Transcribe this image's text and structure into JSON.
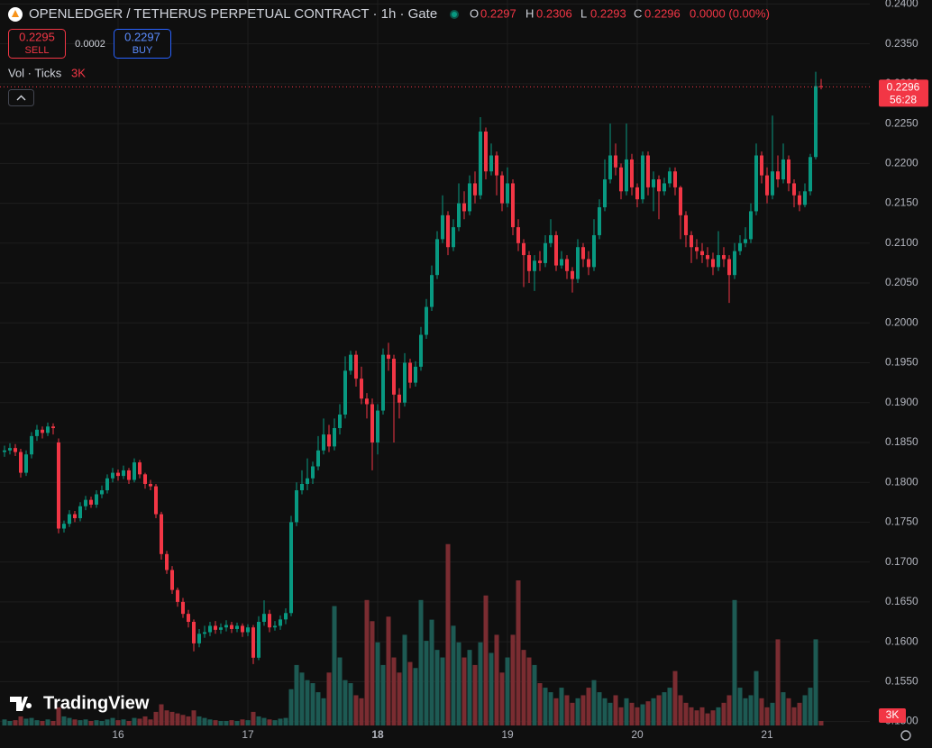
{
  "header": {
    "title": "OPENLEDGER / TETHERUS PERPETUAL CONTRACT · 1h · Gate",
    "o": "O",
    "h": "H",
    "l": "L",
    "c": "C",
    "change": "0.0000 (0.00%)"
  },
  "trade": {
    "sell_price": "0.2295",
    "sell": "SELL",
    "spread": "0.0002",
    "buy_price": "0.2297",
    "buy": "BUY"
  },
  "volume_legend": {
    "label": "Vol · Ticks",
    "value": "3K"
  },
  "countdown": "56:28",
  "brand": "TradingView",
  "chart_data": {
    "type": "candlestick",
    "up_color": "#089981",
    "down_color": "#f23645",
    "volume_up_color": "#1d5a53",
    "volume_down_color": "#7a2c31",
    "grid": true,
    "ylim": [
      0.1495,
      0.2405
    ],
    "yticks": [
      {
        "value": 0.15,
        "label": "0.1500"
      },
      {
        "value": 0.155,
        "label": "0.1550"
      },
      {
        "value": 0.16,
        "label": "0.1600"
      },
      {
        "value": 0.165,
        "label": "0.1650"
      },
      {
        "value": 0.17,
        "label": "0.1700"
      },
      {
        "value": 0.175,
        "label": "0.1750"
      },
      {
        "value": 0.18,
        "label": "0.1800"
      },
      {
        "value": 0.185,
        "label": "0.1850"
      },
      {
        "value": 0.19,
        "label": "0.1900"
      },
      {
        "value": 0.195,
        "label": "0.1950"
      },
      {
        "value": 0.2,
        "label": "0.2000"
      },
      {
        "value": 0.205,
        "label": "0.2050"
      },
      {
        "value": 0.21,
        "label": "0.2100"
      },
      {
        "value": 0.215,
        "label": "0.2150"
      },
      {
        "value": 0.22,
        "label": "0.2200"
      },
      {
        "value": 0.225,
        "label": "0.2250"
      },
      {
        "value": 0.23,
        "label": "0.2300"
      },
      {
        "value": 0.235,
        "label": "0.2350"
      },
      {
        "value": 0.24,
        "label": "0.2400"
      }
    ],
    "xticks": [
      {
        "value": 21,
        "label": "16"
      },
      {
        "value": 45,
        "label": "17"
      },
      {
        "value": 69,
        "label": "18",
        "bold": true
      },
      {
        "value": 93,
        "label": "19"
      },
      {
        "value": 117,
        "label": "20"
      },
      {
        "value": 141,
        "label": "21"
      }
    ],
    "volume_lim": [
      0,
      480000
    ],
    "volume_label": "3K",
    "ohlc": [
      [
        0.1838,
        0.1846,
        0.1832,
        0.184
      ],
      [
        0.184,
        0.1849,
        0.1835,
        0.1843
      ],
      [
        0.1843,
        0.1848,
        0.1833,
        0.1838
      ],
      [
        0.1838,
        0.1842,
        0.1806,
        0.1812
      ],
      [
        0.1812,
        0.184,
        0.1808,
        0.1835
      ],
      [
        0.1835,
        0.1863,
        0.183,
        0.1858
      ],
      [
        0.1858,
        0.1872,
        0.1852,
        0.1866
      ],
      [
        0.1866,
        0.187,
        0.1855,
        0.1862
      ],
      [
        0.1862,
        0.1875,
        0.1858,
        0.187
      ],
      [
        0.187,
        0.1874,
        0.186,
        0.1868
      ],
      [
        0.185,
        0.1855,
        0.1736,
        0.1742
      ],
      [
        0.1742,
        0.1752,
        0.1737,
        0.1748
      ],
      [
        0.1748,
        0.1765,
        0.1744,
        0.176
      ],
      [
        0.176,
        0.1764,
        0.175,
        0.1755
      ],
      [
        0.1755,
        0.1775,
        0.1751,
        0.177
      ],
      [
        0.177,
        0.1783,
        0.1765,
        0.1778
      ],
      [
        0.1778,
        0.1782,
        0.1768,
        0.1772
      ],
      [
        0.1772,
        0.179,
        0.1768,
        0.1785
      ],
      [
        0.1785,
        0.1796,
        0.178,
        0.179
      ],
      [
        0.179,
        0.181,
        0.1786,
        0.1805
      ],
      [
        0.1805,
        0.1818,
        0.18,
        0.1812
      ],
      [
        0.1812,
        0.1816,
        0.1802,
        0.1808
      ],
      [
        0.1808,
        0.1821,
        0.1804,
        0.1815
      ],
      [
        0.1815,
        0.1818,
        0.1798,
        0.1803
      ],
      [
        0.1803,
        0.183,
        0.18,
        0.1825
      ],
      [
        0.1825,
        0.1828,
        0.1805,
        0.181
      ],
      [
        0.181,
        0.1812,
        0.1792,
        0.1798
      ],
      [
        0.1798,
        0.1803,
        0.179,
        0.1795
      ],
      [
        0.1795,
        0.1798,
        0.1755,
        0.176
      ],
      [
        0.176,
        0.1763,
        0.1703,
        0.171
      ],
      [
        0.171,
        0.1714,
        0.1685,
        0.169
      ],
      [
        0.169,
        0.1695,
        0.166,
        0.1665
      ],
      [
        0.1665,
        0.1668,
        0.1644,
        0.165
      ],
      [
        0.165,
        0.1655,
        0.163,
        0.1635
      ],
      [
        0.1635,
        0.164,
        0.1618,
        0.1625
      ],
      [
        0.1625,
        0.1628,
        0.1588,
        0.1598
      ],
      [
        0.1598,
        0.1616,
        0.1593,
        0.161
      ],
      [
        0.161,
        0.162,
        0.1605,
        0.1612
      ],
      [
        0.1612,
        0.1625,
        0.1607,
        0.162
      ],
      [
        0.162,
        0.1626,
        0.161,
        0.1615
      ],
      [
        0.1615,
        0.1623,
        0.161,
        0.1618
      ],
      [
        0.1618,
        0.1627,
        0.1613,
        0.1621
      ],
      [
        0.1621,
        0.1625,
        0.1611,
        0.1616
      ],
      [
        0.1616,
        0.1624,
        0.1612,
        0.162
      ],
      [
        0.162,
        0.1623,
        0.1606,
        0.1612
      ],
      [
        0.1612,
        0.1622,
        0.1607,
        0.1618
      ],
      [
        0.1618,
        0.1621,
        0.1572,
        0.158
      ],
      [
        0.158,
        0.1632,
        0.1577,
        0.1625
      ],
      [
        0.1625,
        0.1652,
        0.162,
        0.1635
      ],
      [
        0.1635,
        0.164,
        0.1612,
        0.1618
      ],
      [
        0.1618,
        0.1626,
        0.1614,
        0.162
      ],
      [
        0.162,
        0.1633,
        0.1615,
        0.1628
      ],
      [
        0.1628,
        0.1642,
        0.1622,
        0.1636
      ],
      [
        0.1636,
        0.1758,
        0.1632,
        0.175
      ],
      [
        0.175,
        0.18,
        0.1745,
        0.179
      ],
      [
        0.179,
        0.1815,
        0.1785,
        0.1798
      ],
      [
        0.1798,
        0.183,
        0.179,
        0.1805
      ],
      [
        0.1805,
        0.1826,
        0.1798,
        0.182
      ],
      [
        0.182,
        0.1858,
        0.1815,
        0.184
      ],
      [
        0.184,
        0.188,
        0.1835,
        0.186
      ],
      [
        0.186,
        0.1872,
        0.1838,
        0.1845
      ],
      [
        0.1845,
        0.188,
        0.184,
        0.1868
      ],
      [
        0.1868,
        0.1898,
        0.186,
        0.1885
      ],
      [
        0.1885,
        0.1958,
        0.188,
        0.194
      ],
      [
        0.194,
        0.1965,
        0.1935,
        0.196
      ],
      [
        0.196,
        0.1965,
        0.192,
        0.193
      ],
      [
        0.193,
        0.1945,
        0.1898,
        0.1905
      ],
      [
        0.1905,
        0.1912,
        0.188,
        0.1898
      ],
      [
        0.1898,
        0.1905,
        0.1815,
        0.185
      ],
      [
        0.185,
        0.1898,
        0.1835,
        0.189
      ],
      [
        0.189,
        0.1968,
        0.1885,
        0.196
      ],
      [
        0.196,
        0.1975,
        0.194,
        0.1955
      ],
      [
        0.1955,
        0.196,
        0.185,
        0.191
      ],
      [
        0.191,
        0.1918,
        0.188,
        0.19
      ],
      [
        0.19,
        0.1962,
        0.1895,
        0.195
      ],
      [
        0.195,
        0.1955,
        0.1918,
        0.1925
      ],
      [
        0.1925,
        0.1952,
        0.192,
        0.1945
      ],
      [
        0.1945,
        0.1995,
        0.194,
        0.1985
      ],
      [
        0.1985,
        0.203,
        0.198,
        0.202
      ],
      [
        0.202,
        0.2072,
        0.2015,
        0.206
      ],
      [
        0.206,
        0.2115,
        0.2055,
        0.2105
      ],
      [
        0.2105,
        0.216,
        0.21,
        0.2135
      ],
      [
        0.2135,
        0.214,
        0.2085,
        0.2095
      ],
      [
        0.2095,
        0.213,
        0.209,
        0.212
      ],
      [
        0.212,
        0.2175,
        0.2115,
        0.215
      ],
      [
        0.215,
        0.2165,
        0.213,
        0.214
      ],
      [
        0.214,
        0.2185,
        0.2135,
        0.2175
      ],
      [
        0.2175,
        0.219,
        0.215,
        0.216
      ],
      [
        0.216,
        0.2258,
        0.2155,
        0.224
      ],
      [
        0.224,
        0.2245,
        0.218,
        0.219
      ],
      [
        0.219,
        0.2225,
        0.2185,
        0.221
      ],
      [
        0.221,
        0.2215,
        0.216,
        0.2185
      ],
      [
        0.2185,
        0.219,
        0.214,
        0.215
      ],
      [
        0.215,
        0.2195,
        0.2145,
        0.2175
      ],
      [
        0.2175,
        0.218,
        0.211,
        0.212
      ],
      [
        0.212,
        0.213,
        0.209,
        0.21
      ],
      [
        0.21,
        0.2105,
        0.2045,
        0.2085
      ],
      [
        0.2085,
        0.209,
        0.205,
        0.2065
      ],
      [
        0.2065,
        0.2085,
        0.204,
        0.2078
      ],
      [
        0.2078,
        0.209,
        0.2065,
        0.2075
      ],
      [
        0.2075,
        0.211,
        0.207,
        0.21
      ],
      [
        0.21,
        0.213,
        0.2095,
        0.211
      ],
      [
        0.211,
        0.2115,
        0.2065,
        0.2072
      ],
      [
        0.2072,
        0.209,
        0.2068,
        0.208
      ],
      [
        0.208,
        0.2085,
        0.2055,
        0.2065
      ],
      [
        0.2065,
        0.207,
        0.2038,
        0.2055
      ],
      [
        0.2055,
        0.2105,
        0.205,
        0.2095
      ],
      [
        0.2095,
        0.21,
        0.207,
        0.208
      ],
      [
        0.208,
        0.209,
        0.206,
        0.207
      ],
      [
        0.207,
        0.213,
        0.2065,
        0.211
      ],
      [
        0.211,
        0.2155,
        0.2105,
        0.2145
      ],
      [
        0.2145,
        0.2205,
        0.214,
        0.218
      ],
      [
        0.218,
        0.225,
        0.2175,
        0.221
      ],
      [
        0.221,
        0.2225,
        0.2185,
        0.2195
      ],
      [
        0.2195,
        0.22,
        0.2155,
        0.2165
      ],
      [
        0.2165,
        0.225,
        0.216,
        0.2205
      ],
      [
        0.2205,
        0.2212,
        0.216,
        0.217
      ],
      [
        0.217,
        0.2175,
        0.2145,
        0.2155
      ],
      [
        0.2155,
        0.2215,
        0.215,
        0.221
      ],
      [
        0.221,
        0.2215,
        0.216,
        0.217
      ],
      [
        0.217,
        0.219,
        0.214,
        0.218
      ],
      [
        0.218,
        0.2185,
        0.213,
        0.2165
      ],
      [
        0.2165,
        0.2182,
        0.216,
        0.2175
      ],
      [
        0.2175,
        0.2195,
        0.217,
        0.219
      ],
      [
        0.219,
        0.2195,
        0.216,
        0.217
      ],
      [
        0.217,
        0.2172,
        0.2105,
        0.2135
      ],
      [
        0.2135,
        0.214,
        0.2095,
        0.211
      ],
      [
        0.211,
        0.2115,
        0.2075,
        0.2095
      ],
      [
        0.2095,
        0.2105,
        0.208,
        0.209
      ],
      [
        0.209,
        0.21,
        0.2075,
        0.2085
      ],
      [
        0.2085,
        0.2095,
        0.207,
        0.208
      ],
      [
        0.208,
        0.2088,
        0.206,
        0.207
      ],
      [
        0.207,
        0.2115,
        0.2065,
        0.2085
      ],
      [
        0.2085,
        0.2095,
        0.207,
        0.208
      ],
      [
        0.208,
        0.2085,
        0.2025,
        0.206
      ],
      [
        0.206,
        0.21,
        0.2055,
        0.209
      ],
      [
        0.209,
        0.211,
        0.2085,
        0.21
      ],
      [
        0.21,
        0.212,
        0.2095,
        0.2105
      ],
      [
        0.2105,
        0.215,
        0.21,
        0.214
      ],
      [
        0.214,
        0.2225,
        0.2135,
        0.221
      ],
      [
        0.221,
        0.2215,
        0.2175,
        0.2185
      ],
      [
        0.2185,
        0.2195,
        0.215,
        0.216
      ],
      [
        0.216,
        0.226,
        0.2155,
        0.219
      ],
      [
        0.219,
        0.221,
        0.217,
        0.218
      ],
      [
        0.218,
        0.2225,
        0.2175,
        0.2205
      ],
      [
        0.2205,
        0.221,
        0.2165,
        0.2175
      ],
      [
        0.2175,
        0.218,
        0.2145,
        0.216
      ],
      [
        0.216,
        0.2165,
        0.214,
        0.2148
      ],
      [
        0.2148,
        0.2175,
        0.2145,
        0.2165
      ],
      [
        0.2165,
        0.2212,
        0.216,
        0.2208
      ],
      [
        0.2208,
        0.2315,
        0.2205,
        0.2297
      ],
      [
        0.2297,
        0.2306,
        0.2293,
        0.2296
      ]
    ],
    "volume": [
      4000,
      3000,
      3500,
      6000,
      4500,
      5000,
      3500,
      3000,
      4000,
      3000,
      12000,
      6000,
      5000,
      4000,
      3500,
      4000,
      3000,
      3500,
      3000,
      4000,
      5000,
      3500,
      4000,
      3000,
      5000,
      4500,
      6000,
      4000,
      9000,
      14000,
      10000,
      9000,
      8000,
      7000,
      6000,
      10000,
      6000,
      5000,
      4000,
      3500,
      3000,
      3000,
      3500,
      3000,
      4000,
      3500,
      9000,
      6000,
      5000,
      4000,
      3500,
      4500,
      5000,
      24000,
      40000,
      35000,
      30000,
      28000,
      22000,
      18000,
      35000,
      79000,
      45000,
      30000,
      28000,
      20000,
      18000,
      83000,
      69000,
      55000,
      40000,
      72000,
      45000,
      35000,
      60000,
      42000,
      38000,
      83000,
      56000,
      70000,
      50000,
      45000,
      120000,
      66000,
      55000,
      45000,
      50000,
      40000,
      55000,
      86000,
      48000,
      60000,
      35000,
      45000,
      60000,
      96000,
      50000,
      45000,
      40000,
      28000,
      25000,
      22000,
      18000,
      25000,
      20000,
      15000,
      18000,
      20000,
      25000,
      30000,
      22000,
      18000,
      15000,
      20000,
      12000,
      18000,
      15000,
      12000,
      14000,
      16000,
      18000,
      20000,
      22000,
      25000,
      36000,
      20000,
      15000,
      12000,
      10000,
      12000,
      8000,
      10000,
      12000,
      15000,
      20000,
      83000,
      25000,
      18000,
      20000,
      36000,
      18000,
      12000,
      15000,
      57000,
      22000,
      18000,
      12000,
      15000,
      20000,
      25000,
      57000,
      3000
    ]
  }
}
